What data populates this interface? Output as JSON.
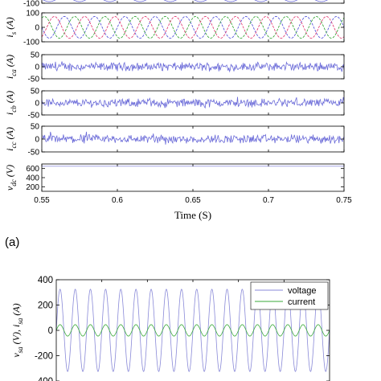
{
  "panel_label": "(a)",
  "chart_data": [
    {
      "type": "line",
      "id": "top",
      "xlim": [
        0.55,
        0.75
      ],
      "xticks": [
        0.55,
        0.6,
        0.65,
        0.7,
        0.75
      ],
      "xtick_labels": [
        "0.55",
        "0.6",
        "0.65",
        "0.7",
        "0.75"
      ],
      "xlabel": "Time (S)",
      "subplots": [
        {
          "ylabel": "",
          "ylabel_main": "",
          "ylabel_sub": "",
          "ylabel_suffix": "",
          "ylim": [
            -100,
            100
          ],
          "yticks": [
            -100
          ],
          "ytick_labels": [
            "-100"
          ],
          "signal": "three-phase sinusoid",
          "series": [
            {
              "name": "",
              "color": "#6a6ad8",
              "amplitude": 60,
              "frequency_hz": 50,
              "phase_deg": 0
            }
          ]
        },
        {
          "ylabel": "i_s (A)",
          "ylabel_main": "i",
          "ylabel_sub": "s",
          "ylabel_suffix": " (A)",
          "ylim": [
            -100,
            100
          ],
          "yticks": [
            100,
            0,
            -100
          ],
          "ytick_labels": [
            "100",
            "0",
            "-100"
          ],
          "signal": "three-phase sinusoid",
          "series": [
            {
              "name": "",
              "color": "#4a4ad8",
              "amplitude": 75,
              "frequency_hz": 50,
              "phase_deg": 0
            },
            {
              "name": "",
              "color": "#2aa02a",
              "amplitude": 75,
              "frequency_hz": 50,
              "phase_deg": -120
            },
            {
              "name": "",
              "color": "#e0306a",
              "amplitude": 75,
              "frequency_hz": 50,
              "phase_deg": 120
            }
          ]
        },
        {
          "ylabel": "i_ca (A)",
          "ylabel_main": "i",
          "ylabel_sub": "ca",
          "ylabel_suffix": " (A)",
          "ylim": [
            -50,
            50
          ],
          "yticks": [
            50,
            0,
            -50
          ],
          "ytick_labels": [
            "50",
            "0",
            "-50"
          ],
          "signal": "noise",
          "series": [
            {
              "name": "",
              "color": "#6a6ad8",
              "amplitude": 18
            }
          ]
        },
        {
          "ylabel": "i_cb (A)",
          "ylabel_main": "i",
          "ylabel_sub": "cb",
          "ylabel_suffix": " (A)",
          "ylim": [
            -50,
            50
          ],
          "yticks": [
            50,
            0,
            -50
          ],
          "ytick_labels": [
            "50",
            "0",
            "-50"
          ],
          "signal": "noise",
          "series": [
            {
              "name": "",
              "color": "#6a6ad8",
              "amplitude": 18
            }
          ]
        },
        {
          "ylabel": "i_cc (A)",
          "ylabel_main": "i",
          "ylabel_sub": "cc",
          "ylabel_suffix": " (A)",
          "ylim": [
            -50,
            50
          ],
          "yticks": [
            50,
            0,
            -50
          ],
          "ytick_labels": [
            "50",
            "0",
            "-50"
          ],
          "signal": "noise",
          "series": [
            {
              "name": "",
              "color": "#6a6ad8",
              "amplitude": 18
            }
          ]
        },
        {
          "ylabel": "v_dc (V)",
          "ylabel_main": "v",
          "ylabel_sub": "dc",
          "ylabel_suffix": " (V)",
          "ylim": [
            100,
            700
          ],
          "yticks": [
            600,
            400,
            200
          ],
          "ytick_labels": [
            "600",
            "400",
            "200"
          ],
          "signal": "constant",
          "series": [
            {
              "name": "",
              "color": "#9a9ae0",
              "value": 650
            }
          ]
        }
      ]
    },
    {
      "type": "line",
      "id": "bottom",
      "ylabel": "v_sa (V), i_sa (A)",
      "ylabel_parts": [
        {
          "main": "v",
          "sub": "sa",
          "suffix": " (V), "
        },
        {
          "main": "i",
          "sub": "sa",
          "suffix": " (A)"
        }
      ],
      "ylim": [
        -400,
        400
      ],
      "yticks": [
        400,
        200,
        0,
        -200,
        -400
      ],
      "ytick_labels": [
        "400",
        "200",
        "0",
        "-200",
        "-400"
      ],
      "legend_position": "top-right",
      "series": [
        {
          "name": "voltage",
          "color": "#8a8ad8",
          "amplitude": 325,
          "frequency_hz": 50,
          "phase_deg": 0
        },
        {
          "name": "current",
          "color": "#3aaa3a",
          "amplitude": 45,
          "frequency_hz": 50,
          "phase_deg": 0
        }
      ]
    }
  ]
}
